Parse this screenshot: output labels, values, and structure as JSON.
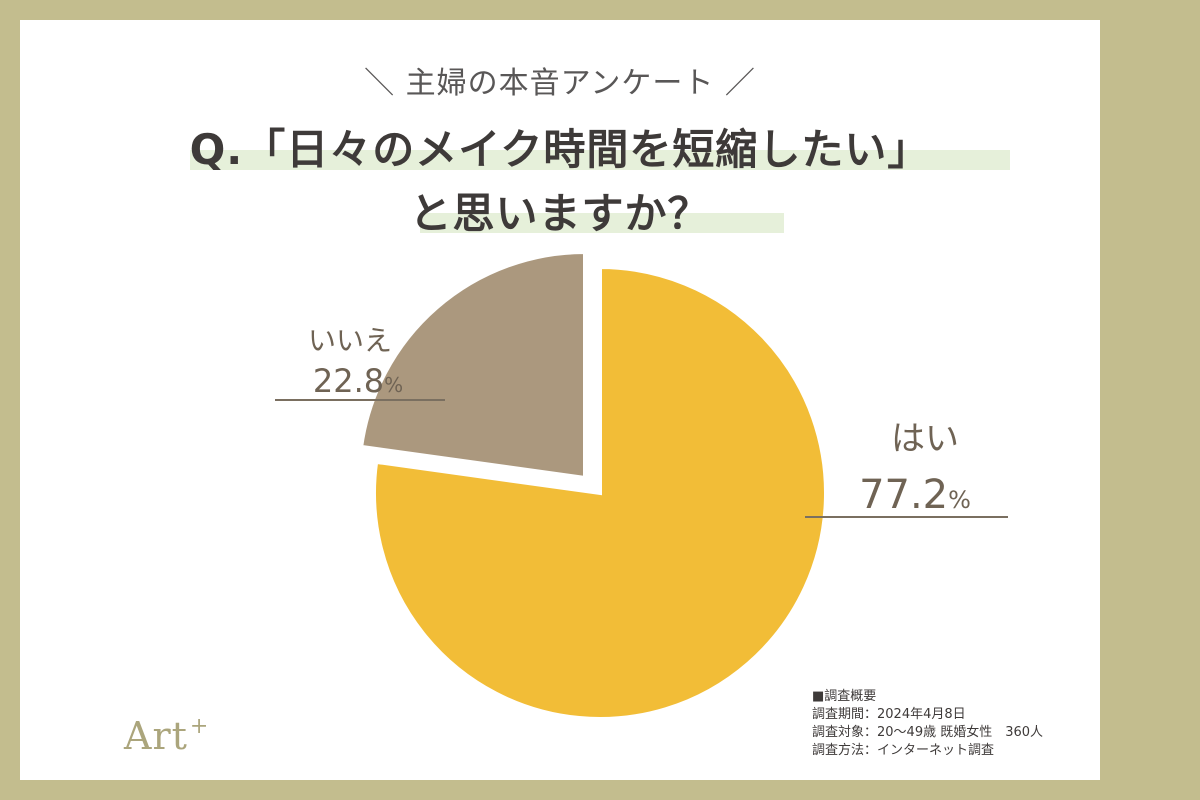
{
  "header": {
    "kicker": "＼ 主婦の本音アンケート ／",
    "question_line1": "Q.「日々のメイク時間を短縮したい」",
    "question_line2": "と思いますか？"
  },
  "chart_data": {
    "type": "pie",
    "title": "Q.「日々のメイク時間を短縮したい」と思いますか？",
    "slices": [
      {
        "label": "はい",
        "value": 77.2,
        "value_text": "77.2",
        "unit": "%",
        "color": "#f2bd37"
      },
      {
        "label": "いいえ",
        "value": 22.8,
        "value_text": "22.8",
        "unit": "%",
        "color": "#ab987e"
      }
    ]
  },
  "survey": {
    "heading": "■調査概要",
    "lines": [
      "調査期間：2024年4月8日",
      "調査対象：20〜49歳 既婚女性　360人",
      "調査方法：インターネット調査"
    ]
  },
  "brand": {
    "name": "Art",
    "mark": "+"
  },
  "colors": {
    "frame": "#c3bd8e",
    "highlight": "#e6f0da",
    "label_text": "#6f6354"
  }
}
